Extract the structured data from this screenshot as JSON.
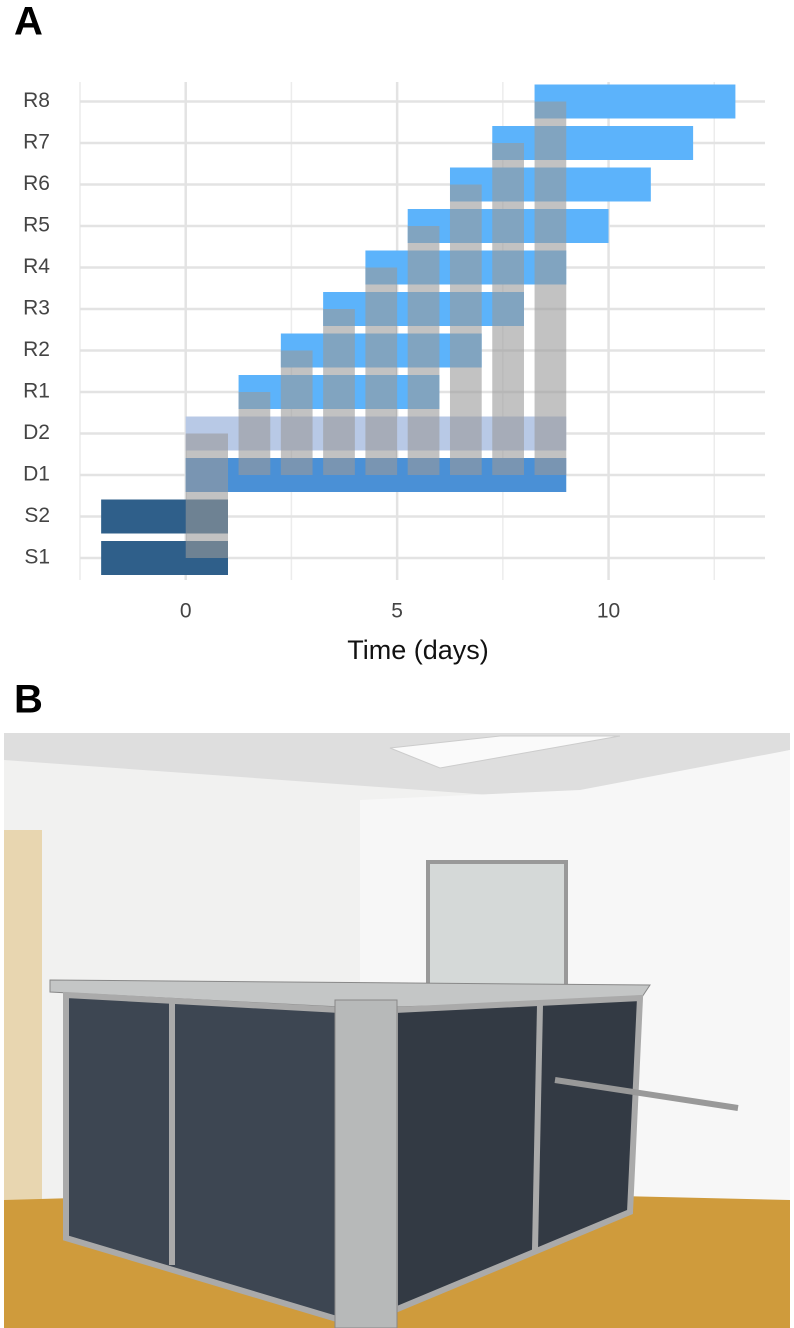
{
  "panel_labels": [
    "A",
    "B"
  ],
  "chart_data": {
    "type": "gantt",
    "x_label": "Time (days)",
    "categories": [
      "S1",
      "S2",
      "D1",
      "D2",
      "R1",
      "R2",
      "R3",
      "R4",
      "R5",
      "R6",
      "R7",
      "R8"
    ],
    "xlim": [
      -2.5,
      13.7
    ],
    "xticks": [
      0,
      5,
      10
    ],
    "xminor": [
      -2.5,
      2.5,
      7.5,
      12.5
    ],
    "grid": true,
    "bars": [
      {
        "row": "S1",
        "start": -2,
        "end": 1,
        "color": "#2f5f8a"
      },
      {
        "row": "S2",
        "start": -2,
        "end": 1,
        "color": "#2f5f8a"
      },
      {
        "row": "D1",
        "start": 0,
        "end": 9,
        "color": "#4a90d6"
      },
      {
        "row": "D2",
        "start": 0,
        "end": 9,
        "color": "#b8c9e6"
      },
      {
        "row": "R1",
        "start": 1.25,
        "end": 6,
        "color": "#5cb3fb"
      },
      {
        "row": "R2",
        "start": 2.25,
        "end": 7,
        "color": "#5cb3fb"
      },
      {
        "row": "R3",
        "start": 3.25,
        "end": 8,
        "color": "#5cb3fb"
      },
      {
        "row": "R4",
        "start": 4.25,
        "end": 9,
        "color": "#5cb3fb"
      },
      {
        "row": "R5",
        "start": 5.25,
        "end": 10,
        "color": "#5cb3fb"
      },
      {
        "row": "R6",
        "start": 6.25,
        "end": 11,
        "color": "#5cb3fb"
      },
      {
        "row": "R7",
        "start": 7.25,
        "end": 12,
        "color": "#5cb3fb"
      },
      {
        "row": "R8",
        "start": 8.25,
        "end": 13,
        "color": "#5cb3fb"
      }
    ],
    "windows_color": "#9a9a9a",
    "windows": [
      {
        "start": 0,
        "end": 1,
        "rows": [
          "S1",
          "D2"
        ]
      },
      {
        "start": 1.25,
        "end": 2,
        "rows": [
          "D1",
          "R1"
        ]
      },
      {
        "start": 2.25,
        "end": 3,
        "rows": [
          "D1",
          "R2"
        ]
      },
      {
        "start": 3.25,
        "end": 4,
        "rows": [
          "D1",
          "R3"
        ]
      },
      {
        "start": 4.25,
        "end": 5,
        "rows": [
          "D1",
          "R4"
        ]
      },
      {
        "start": 5.25,
        "end": 6,
        "rows": [
          "D1",
          "R5"
        ]
      },
      {
        "start": 6.25,
        "end": 7,
        "rows": [
          "D1",
          "R6"
        ]
      },
      {
        "start": 7.25,
        "end": 8,
        "rows": [
          "D1",
          "R7"
        ]
      },
      {
        "start": 8.25,
        "end": 9,
        "rows": [
          "D1",
          "R8"
        ]
      }
    ]
  }
}
